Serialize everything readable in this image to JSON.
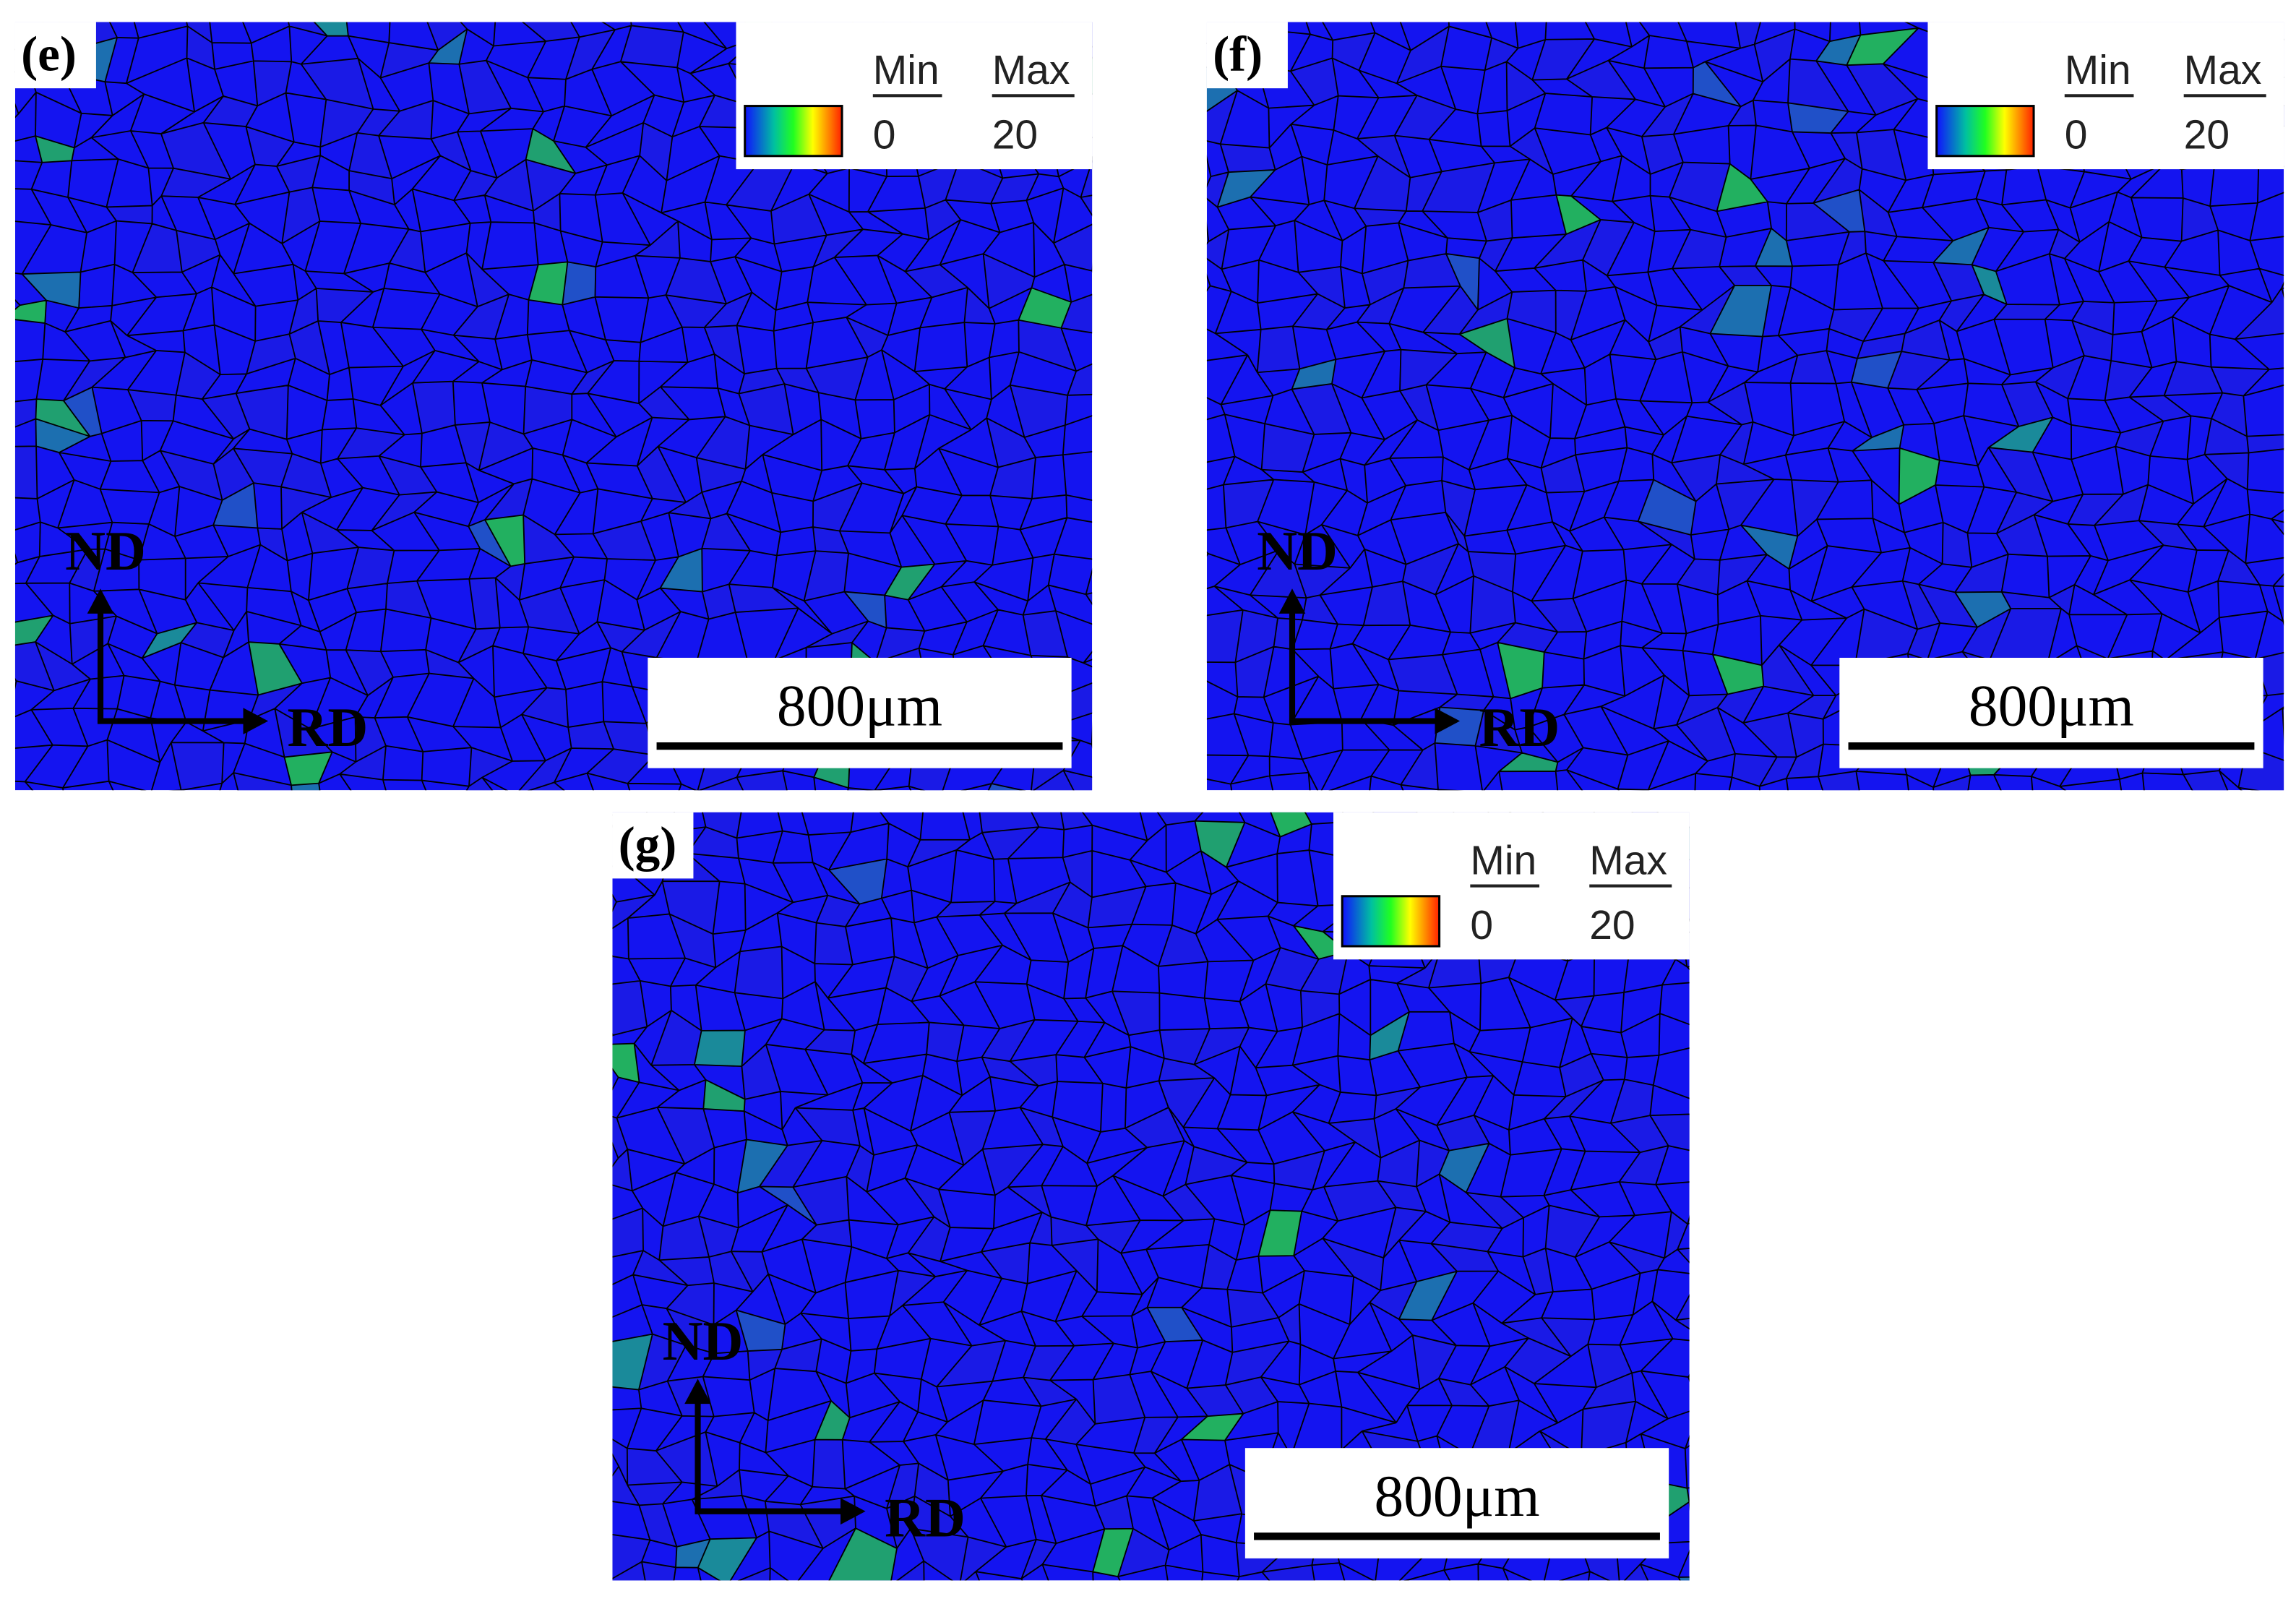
{
  "panels": [
    {
      "label": "(e)",
      "legend": {
        "min_label": "Min",
        "max_label": "Max",
        "min": 0,
        "max": 20
      },
      "scale_bar": "800μm",
      "axes": {
        "vertical": "ND",
        "horizontal": "RD"
      }
    },
    {
      "label": "(f)",
      "legend": {
        "min_label": "Min",
        "max_label": "Max",
        "min": 0,
        "max": 20
      },
      "scale_bar": "800μm",
      "axes": {
        "vertical": "ND",
        "horizontal": "RD"
      }
    },
    {
      "label": "(g)",
      "legend": {
        "min_label": "Min",
        "max_label": "Max",
        "min": 0,
        "max": 20
      },
      "scale_bar": "800μm",
      "axes": {
        "vertical": "ND",
        "horizontal": "RD"
      }
    }
  ]
}
